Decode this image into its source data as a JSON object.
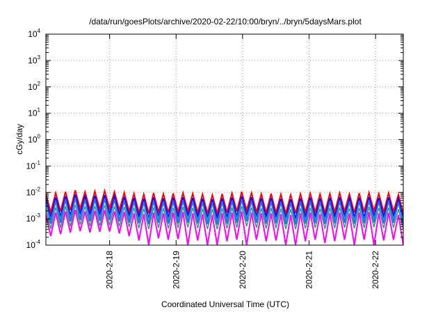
{
  "chart_data": {
    "type": "line",
    "title": "/data/run/goesPlots/archive/2020-02-22/10:00/bryn/../bryn/5daysMars.plot",
    "xlabel": "Coordinated Universal Time (UTC)",
    "ylabel": "cGy/day",
    "yscale": "log",
    "ylim": [
      0.0001,
      10000
    ],
    "xlim": [
      "2020-02-17T01:00",
      "2020-02-22T10:00"
    ],
    "grid": true,
    "y_ticks": [
      {
        "base": "10",
        "exp": "-4"
      },
      {
        "base": "10",
        "exp": "-3"
      },
      {
        "base": "10",
        "exp": "-2"
      },
      {
        "base": "10",
        "exp": "-1"
      },
      {
        "base": "10",
        "exp": "0"
      },
      {
        "base": "10",
        "exp": "1"
      },
      {
        "base": "10",
        "exp": "2"
      },
      {
        "base": "10",
        "exp": "3"
      },
      {
        "base": "10",
        "exp": "4"
      }
    ],
    "x_ticks": [
      {
        "label": "2020-2-18",
        "x": "2020-02-18T00:00"
      },
      {
        "label": "2020-2-19",
        "x": "2020-02-19T00:00"
      },
      {
        "label": "2020-2-20",
        "x": "2020-02-20T00:00"
      },
      {
        "label": "2020-2-21",
        "x": "2020-02-21T00:00"
      },
      {
        "label": "2020-2-22",
        "x": "2020-02-22T00:00"
      }
    ],
    "series": [
      {
        "color": "#ff0000",
        "width": 2,
        "values": [
          0.0085,
          0.0018,
          0.0095,
          0.0019,
          0.0105,
          0.0021,
          0.012,
          0.0024,
          0.0105,
          0.0022,
          0.011,
          0.0023,
          0.0115,
          0.0025,
          0.0105,
          0.0021,
          0.0098,
          0.0019,
          0.009,
          0.0017,
          0.0085,
          0.0016,
          0.0095,
          0.0018,
          0.0088,
          0.0017,
          0.0092,
          0.0018,
          0.0096,
          0.0019,
          0.009,
          0.0017,
          0.0085,
          0.0016,
          0.008,
          0.0016,
          0.0088,
          0.0017,
          0.0093,
          0.0019,
          0.0105,
          0.0021,
          0.0095,
          0.0018,
          0.0088,
          0.0017,
          0.009,
          0.0017,
          0.0085,
          0.0016,
          0.008,
          0.0016,
          0.0088,
          0.0018,
          0.0092,
          0.0018,
          0.0086,
          0.0017,
          0.009,
          0.0018,
          0.0095,
          0.0019,
          0.0088,
          0.0017,
          0.0093,
          0.0018,
          0.0098,
          0.002,
          0.009,
          0.0018,
          0.0095,
          0.0019,
          0.0082,
          0.0016
        ]
      },
      {
        "color": "#0000ff",
        "width": 2,
        "values": [
          0.0058,
          0.0011,
          0.0065,
          0.0012,
          0.0072,
          0.0013,
          0.0082,
          0.0015,
          0.0072,
          0.0014,
          0.0075,
          0.0014,
          0.0079,
          0.0015,
          0.0072,
          0.0013,
          0.0067,
          0.0012,
          0.0062,
          0.0011,
          0.0058,
          0.001,
          0.0065,
          0.0011,
          0.006,
          0.0011,
          0.0063,
          0.0011,
          0.0066,
          0.0012,
          0.0062,
          0.0011,
          0.0058,
          0.001,
          0.0055,
          0.001,
          0.006,
          0.0011,
          0.0064,
          0.0012,
          0.0072,
          0.0013,
          0.0065,
          0.0011,
          0.006,
          0.0011,
          0.0062,
          0.0011,
          0.0058,
          0.001,
          0.0055,
          0.001,
          0.006,
          0.0011,
          0.0063,
          0.0011,
          0.0059,
          0.0011,
          0.0062,
          0.0011,
          0.0065,
          0.0012,
          0.006,
          0.0011,
          0.0064,
          0.0011,
          0.0067,
          0.0012,
          0.0062,
          0.0011,
          0.0065,
          0.0012,
          0.0056,
          0.001
        ]
      },
      {
        "color": "#00c8c8",
        "width": 1.5,
        "values": [
          0.0038,
          0.0009,
          0.0042,
          0.001,
          0.0047,
          0.0011,
          0.0053,
          0.0012,
          0.0047,
          0.0011,
          0.0049,
          0.0011,
          0.0051,
          0.0012,
          0.0047,
          0.0011,
          0.0044,
          0.001,
          0.004,
          0.0009,
          0.0038,
          0.0009,
          0.0042,
          0.001,
          0.0039,
          0.0009,
          0.0041,
          0.0009,
          0.0043,
          0.001,
          0.004,
          0.0009,
          0.0038,
          0.0009,
          0.0036,
          0.0008,
          0.0039,
          0.0009,
          0.0041,
          0.001,
          0.0047,
          0.0011,
          0.0042,
          0.001,
          0.0039,
          0.0009,
          0.004,
          0.0009,
          0.0038,
          0.0009,
          0.0036,
          0.0008,
          0.0039,
          0.0009,
          0.0041,
          0.0009,
          0.0038,
          0.0009,
          0.004,
          0.0009,
          0.0042,
          0.001,
          0.0039,
          0.0009,
          0.0041,
          0.0009,
          0.0044,
          0.001,
          0.004,
          0.0009,
          0.0042,
          0.001,
          0.0037,
          0.0008
        ]
      },
      {
        "color": "#3366ff",
        "width": 2,
        "values": [
          0.0045,
          0.00065,
          0.005,
          0.0007,
          0.0056,
          0.0008,
          0.0064,
          0.0009,
          0.0056,
          0.0008,
          0.0058,
          0.00085,
          0.0061,
          0.0009,
          0.0056,
          0.0008,
          0.0052,
          0.00072,
          0.0048,
          0.00068,
          0.0045,
          0.00062,
          0.005,
          0.0007,
          0.0047,
          0.00066,
          0.0049,
          0.00068,
          0.0051,
          0.0007,
          0.0048,
          0.00067,
          0.0045,
          0.00062,
          0.0043,
          0.0006,
          0.0047,
          0.00065,
          0.005,
          0.0007,
          0.0056,
          0.0008,
          0.005,
          0.0007,
          0.0047,
          0.00065,
          0.0048,
          0.00067,
          0.0045,
          0.00062,
          0.0043,
          0.0006,
          0.0047,
          0.00065,
          0.0049,
          0.00068,
          0.0046,
          0.00064,
          0.0048,
          0.00067,
          0.005,
          0.0007,
          0.0047,
          0.00065,
          0.0049,
          0.00068,
          0.0052,
          0.00072,
          0.0048,
          0.00067,
          0.005,
          0.0007,
          0.0044,
          0.00061
        ]
      },
      {
        "color": "#22a07a",
        "width": 1.5,
        "values": [
          0.0024,
          0.00042,
          0.0027,
          0.00046,
          0.003,
          0.00052,
          0.0034,
          0.0006,
          0.003,
          0.00052,
          0.0031,
          0.00054,
          0.0033,
          0.00057,
          0.003,
          0.00052,
          0.0028,
          0.00048,
          0.0026,
          0.00044,
          0.0024,
          0.00041,
          0.0027,
          0.00046,
          0.0025,
          0.00043,
          0.0026,
          0.00045,
          0.0028,
          0.00047,
          0.0026,
          0.00044,
          0.0024,
          0.00041,
          0.0023,
          0.0004,
          0.0025,
          0.00043,
          0.0027,
          0.00046,
          0.003,
          0.00052,
          0.0027,
          0.00046,
          0.0025,
          0.00043,
          0.0026,
          0.00044,
          0.0024,
          0.00041,
          0.0023,
          0.0004,
          0.0025,
          0.00043,
          0.0026,
          0.00045,
          0.0024,
          0.00042,
          0.0026,
          0.00044,
          0.0027,
          0.00046,
          0.0025,
          0.00043,
          0.0026,
          0.00045,
          0.0028,
          0.00048,
          0.0026,
          0.00044,
          0.0027,
          0.00046,
          0.0023,
          0.0004
        ]
      },
      {
        "color": "#ff00ff",
        "width": 2,
        "values": [
          0.0015,
          0.00022,
          0.0017,
          0.00026,
          0.0019,
          0.0003,
          0.0022,
          0.00034,
          0.0019,
          0.0003,
          0.002,
          0.00032,
          0.0021,
          0.00033,
          0.0019,
          0.00028,
          0.0018,
          0.00022,
          0.0016,
          0.00015,
          0.0015,
          0.0001,
          0.0017,
          0.00018,
          0.0016,
          0.00016,
          0.0017,
          0.00017,
          0.0018,
          0.0001,
          0.0016,
          0.00015,
          0.0015,
          0.0001,
          0.0014,
          0.0001,
          0.0016,
          0.00014,
          0.0017,
          0.00016,
          0.0019,
          0.0001,
          0.0017,
          0.00016,
          0.0016,
          0.00014,
          0.0016,
          0.00015,
          0.0015,
          0.0001,
          0.0014,
          0.0001,
          0.0016,
          0.00014,
          0.0017,
          0.00016,
          0.0015,
          0.00012,
          0.0016,
          0.00014,
          0.0017,
          0.00016,
          0.0016,
          0.0001,
          0.0017,
          0.00016,
          0.0018,
          0.0001,
          0.0016,
          0.00015,
          0.0017,
          0.00016,
          0.0014,
          0.0001
        ]
      }
    ]
  }
}
